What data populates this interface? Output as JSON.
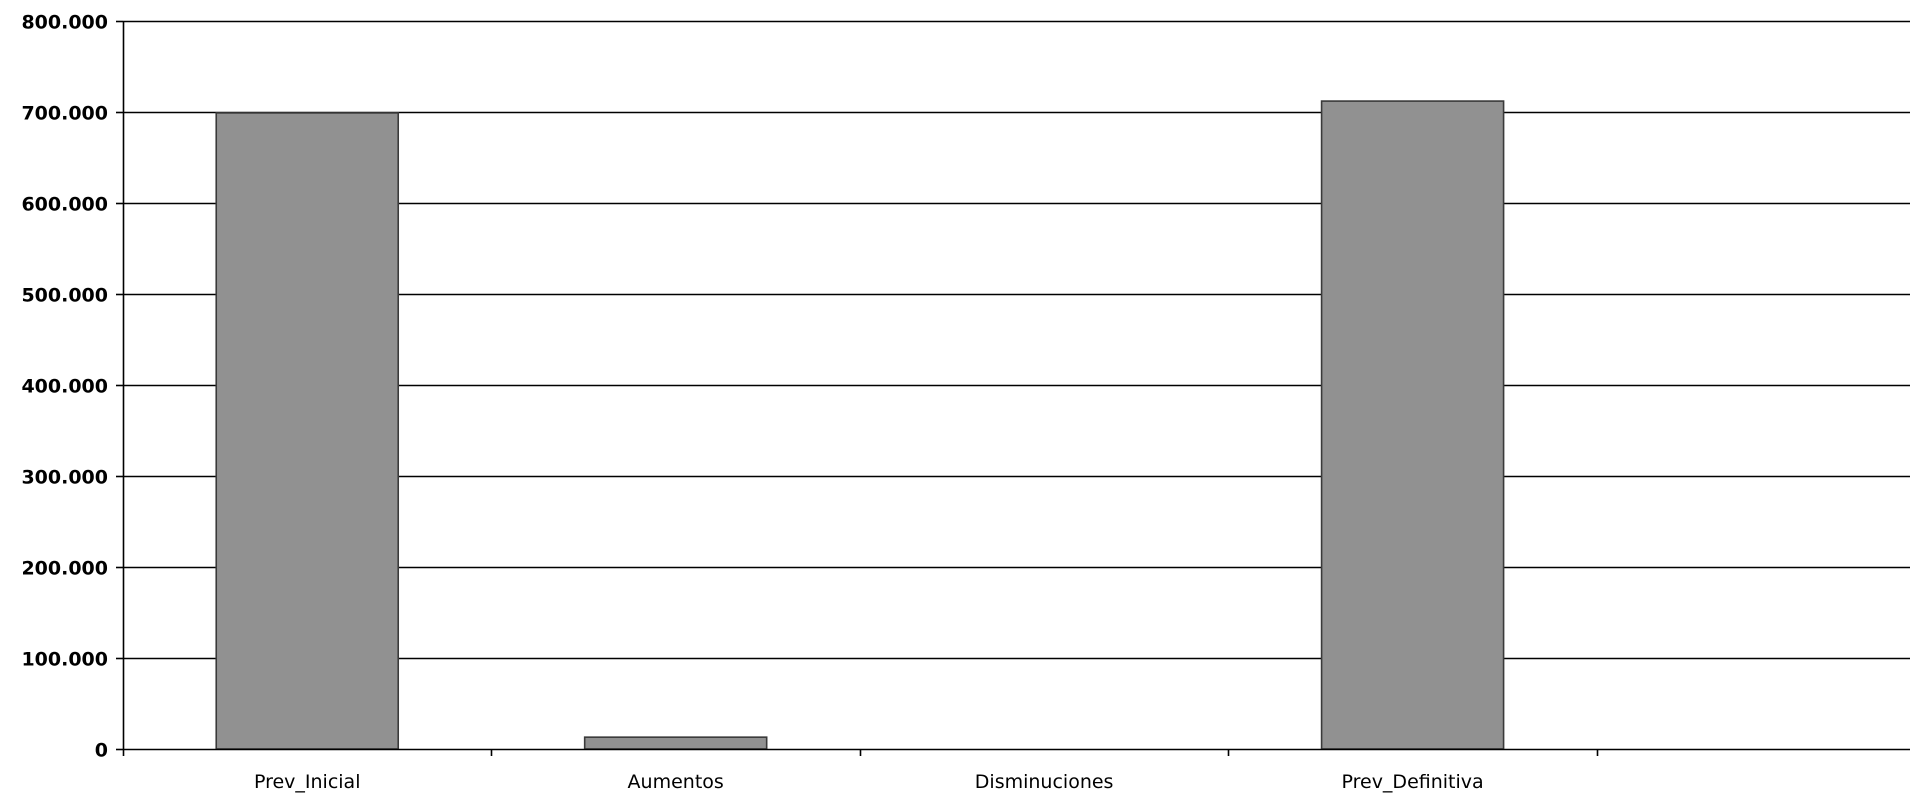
{
  "chart_data": {
    "type": "bar",
    "categories": [
      "Prev_Inicial",
      "Aumentos",
      "Disminuciones",
      "Prev_Definitiva"
    ],
    "values": [
      699000,
      13000,
      0,
      712000
    ],
    "ylim": [
      0,
      800000
    ],
    "y_ticks": [
      0,
      100000,
      200000,
      300000,
      400000,
      500000,
      600000,
      700000,
      800000
    ],
    "y_tick_labels": [
      "0",
      "100.000",
      "200.000",
      "300.000",
      "400.000",
      "500.000",
      "600.000",
      "700.000",
      "800.000"
    ],
    "grid": true,
    "bar_color": "#919191",
    "bar_edge_color": "#3a3a3a",
    "grid_color": "#000000"
  }
}
